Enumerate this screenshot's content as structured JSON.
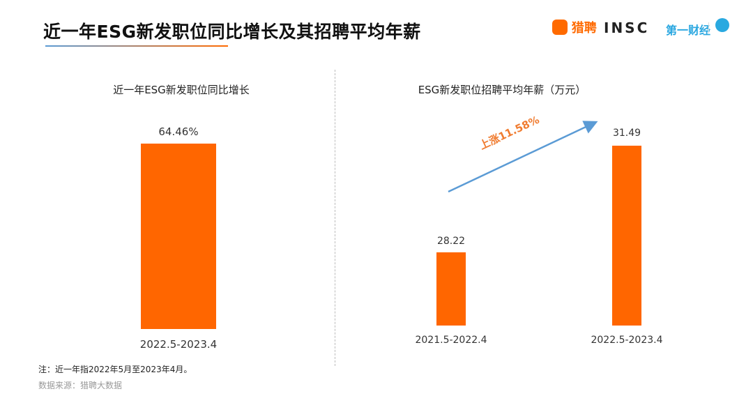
{
  "title": "近一年ESG新发职位同比增长及其招聘平均年薪",
  "logos": [
    "猎聘",
    "INSC",
    "第一财经"
  ],
  "colors": {
    "bar": "#ff6600",
    "arrow": "#5b9bd5",
    "annotation": "#f07b2f"
  },
  "chart_data": [
    {
      "type": "bar",
      "title": "近一年ESG新发职位同比增长",
      "categories": [
        "2022.5-2023.4"
      ],
      "values": [
        64.46
      ],
      "value_labels": [
        "64.46%"
      ],
      "ylim": [
        0,
        64.46
      ],
      "grid": false
    },
    {
      "type": "bar",
      "title": "ESG新发职位招聘平均年薪（万元）",
      "categories": [
        "2021.5-2022.4",
        "2022.5-2023.4"
      ],
      "values": [
        28.22,
        31.49
      ],
      "value_labels": [
        "28.22",
        "31.49"
      ],
      "ylim": [
        25.98,
        31.49
      ],
      "grid": false,
      "annotation": "上涨11.58%"
    }
  ],
  "notes": {
    "note": "注：近一年指2022年5月至2023年4月。",
    "source": "数据来源：猎聘大数据"
  }
}
